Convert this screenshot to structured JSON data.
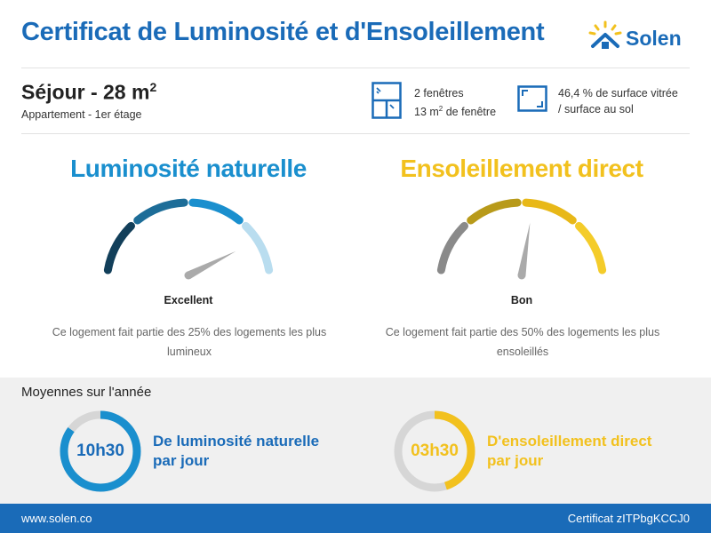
{
  "header": {
    "title": "Certificat de Luminosité et d'Ensoleillement",
    "logo_text": "Solen",
    "logo_icon": "house-sun-icon"
  },
  "room": {
    "title": "Séjour - 28 m",
    "title_sup": "2",
    "subtitle": "Appartement - 1er étage"
  },
  "windows": {
    "count_text": "2 fenêtres",
    "area_text": "13 m",
    "area_sup": "2",
    "area_suffix": " de fenêtre"
  },
  "ratio": {
    "line1": "46,4 % de surface vitrée",
    "line2": "/ surface au sol"
  },
  "luminosity": {
    "title": "Luminosité naturelle",
    "rating": "Excellent",
    "level": 0.85,
    "description": "Ce logement fait partie des 25% des logements les plus lumineux",
    "color": "#1a8fce",
    "segment_colors": [
      "#123f5a",
      "#1d6d98",
      "#1a8fce",
      "#b9ddef"
    ]
  },
  "sunshine": {
    "title": "Ensoleillement direct",
    "rating": "Bon",
    "level": 0.55,
    "description": "Ce logement fait partie des 50% des logements les plus ensoleillés",
    "color": "#f2c11e",
    "segment_colors": [
      "#8a8a8a",
      "#b89a1a",
      "#e8b818",
      "#f4cc2a"
    ]
  },
  "averages": {
    "title": "Moyennes sur l'année",
    "luminosity": {
      "value": "10h30",
      "line1": "De luminosité naturelle",
      "line2": "par jour",
      "fraction": 0.85,
      "color": "#1a8fce"
    },
    "sunshine": {
      "value": "03h30",
      "line1": "D'ensoleillement direct",
      "line2": "par jour",
      "fraction": 0.45,
      "color": "#f2c11e"
    }
  },
  "footer": {
    "website": "www.solen.co",
    "certificate": "Certificat zITPbgKCCJ0"
  }
}
